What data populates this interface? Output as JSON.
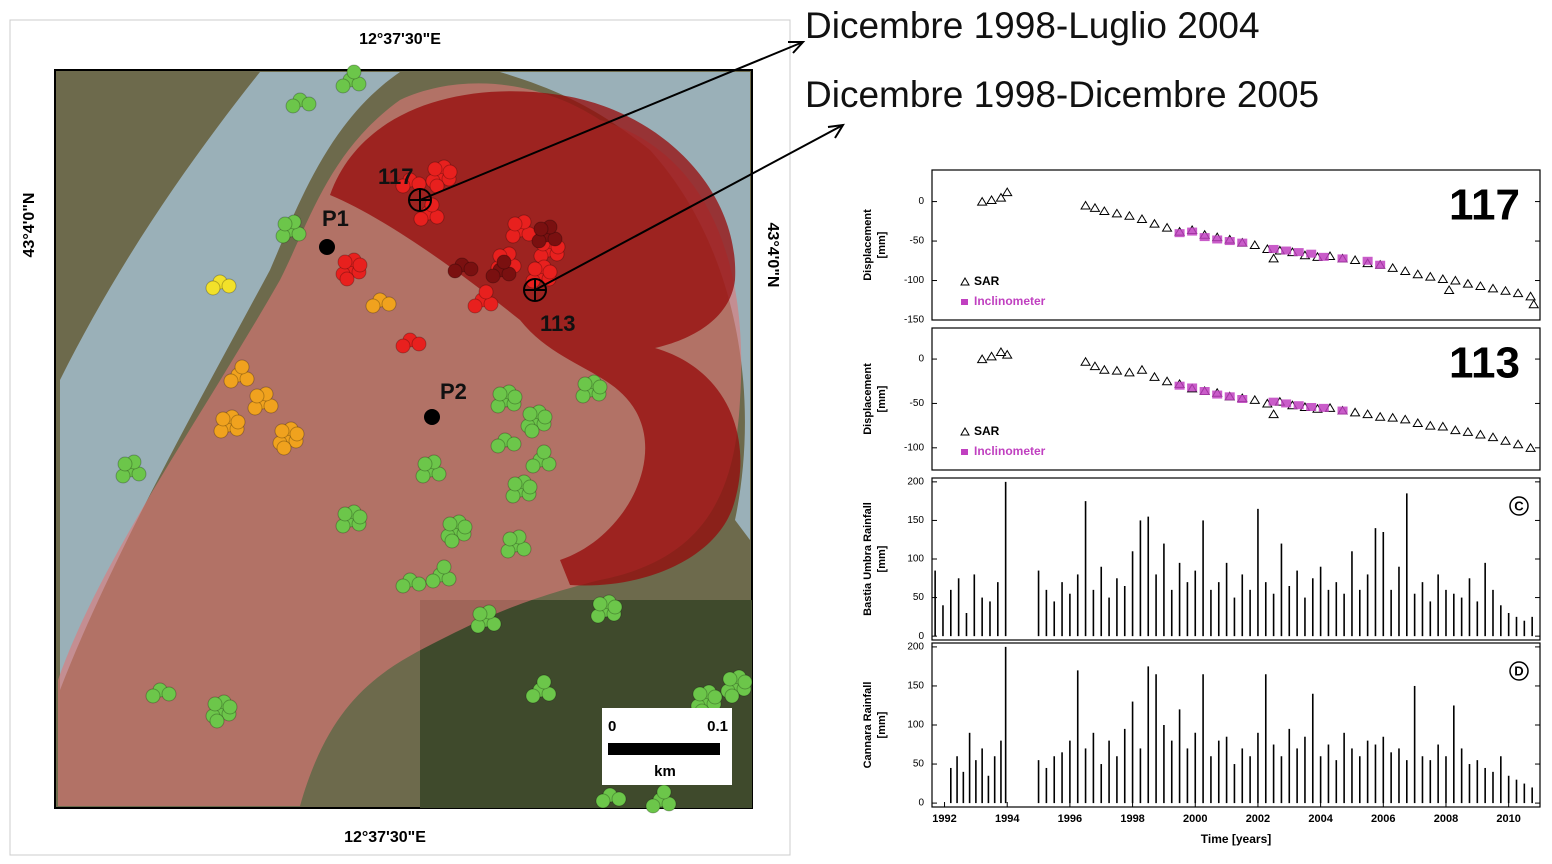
{
  "map": {
    "top_label": "12°37'30\"E",
    "bottom_label": "12°37'30\"E",
    "left_label": "43°4'0\"N",
    "right_label": "43°4'0\"N",
    "points": [
      {
        "label": "117"
      },
      {
        "label": "113"
      },
      {
        "label": "P1"
      },
      {
        "label": "P2"
      }
    ],
    "scale": {
      "start": "0",
      "end": "0.1",
      "unit": "km"
    }
  },
  "annotations": [
    "Dicembre 1998-Luglio 2004",
    "Dicembre 1998-Dicembre 2005"
  ],
  "chart_data": [
    {
      "type": "scatter",
      "panel_label": "117",
      "ylabel": [
        "Displacement",
        "[mm]"
      ],
      "xlim": [
        1991.6,
        2011
      ],
      "ylim": [
        -150,
        40
      ],
      "yticks": [
        -150,
        -100,
        -50,
        0
      ],
      "series": [
        {
          "name": "SAR",
          "color": "#000000",
          "x": [
            1993.2,
            1993.5,
            1993.8,
            1994.0,
            1996.5,
            1996.8,
            1997.1,
            1997.5,
            1997.9,
            1998.3,
            1998.7,
            1999.1,
            1999.5,
            1999.9,
            2000.3,
            2000.7,
            2001.1,
            2001.5,
            2001.9,
            2002.3,
            2002.5,
            2002.7,
            2003.1,
            2003.5,
            2003.9,
            2004.3,
            2004.7,
            2005.1,
            2005.5,
            2005.9,
            2006.3,
            2006.7,
            2007.1,
            2007.5,
            2007.9,
            2008.1,
            2008.3,
            2008.7,
            2009.1,
            2009.5,
            2009.9,
            2010.3,
            2010.7,
            2010.8
          ],
          "values": [
            0,
            2,
            5,
            12,
            -5,
            -8,
            -12,
            -15,
            -18,
            -22,
            -28,
            -33,
            -38,
            -36,
            -42,
            -45,
            -48,
            -52,
            -55,
            -60,
            -72,
            -62,
            -64,
            -68,
            -70,
            -69,
            -72,
            -74,
            -78,
            -80,
            -84,
            -88,
            -92,
            -95,
            -98,
            -112,
            -100,
            -104,
            -107,
            -110,
            -113,
            -116,
            -120,
            -130
          ]
        },
        {
          "name": "Inclinometer",
          "color": "#c040c0",
          "x": [
            1999.5,
            1999.9,
            2000.3,
            2000.7,
            2001.1,
            2001.5,
            2002.5,
            2002.9,
            2003.3,
            2003.7,
            2004.1,
            2004.7,
            2005.5,
            2005.9
          ],
          "values": [
            -40,
            -38,
            -45,
            -48,
            -50,
            -52,
            -60,
            -62,
            -64,
            -66,
            -70,
            -72,
            -75,
            -80
          ]
        }
      ]
    },
    {
      "type": "scatter",
      "panel_label": "113",
      "ylabel": [
        "Displacement",
        "[mm]"
      ],
      "xlim": [
        1991.6,
        2011
      ],
      "ylim": [
        -125,
        35
      ],
      "yticks": [
        -100,
        -50,
        0
      ],
      "series": [
        {
          "name": "SAR",
          "color": "#000000",
          "x": [
            1993.2,
            1993.5,
            1993.8,
            1994.0,
            1996.5,
            1996.8,
            1997.1,
            1997.5,
            1997.9,
            1998.3,
            1998.7,
            1999.1,
            1999.5,
            1999.9,
            2000.3,
            2000.7,
            2001.1,
            2001.5,
            2001.9,
            2002.3,
            2002.5,
            2002.7,
            2003.1,
            2003.5,
            2003.9,
            2004.3,
            2004.7,
            2005.1,
            2005.5,
            2005.9,
            2006.3,
            2006.7,
            2007.1,
            2007.5,
            2007.9,
            2008.3,
            2008.7,
            2009.1,
            2009.5,
            2009.9,
            2010.3,
            2010.7
          ],
          "values": [
            0,
            3,
            8,
            5,
            -3,
            -8,
            -12,
            -13,
            -15,
            -12,
            -20,
            -25,
            -28,
            -33,
            -36,
            -38,
            -42,
            -44,
            -46,
            -50,
            -62,
            -48,
            -52,
            -54,
            -56,
            -55,
            -58,
            -60,
            -62,
            -65,
            -66,
            -68,
            -72,
            -75,
            -76,
            -80,
            -82,
            -85,
            -88,
            -92,
            -96,
            -100
          ]
        },
        {
          "name": "Inclinometer",
          "color": "#c040c0",
          "x": [
            1999.5,
            1999.9,
            2000.3,
            2000.7,
            2001.1,
            2001.5,
            2002.5,
            2002.9,
            2003.3,
            2003.7,
            2004.1,
            2004.7
          ],
          "values": [
            -30,
            -32,
            -36,
            -40,
            -42,
            -45,
            -48,
            -50,
            -52,
            -54,
            -55,
            -58
          ]
        }
      ]
    },
    {
      "type": "bar",
      "panel_label": "C",
      "ylabel": [
        "Bastia Umbra Rainfall",
        "[mm]"
      ],
      "xlim": [
        1991.6,
        2011
      ],
      "ylim": [
        -5,
        205
      ],
      "yticks": [
        0,
        50,
        100,
        150,
        200
      ],
      "color": "#000000",
      "x": [
        1991.7,
        1991.95,
        1992.2,
        1992.45,
        1992.7,
        1992.95,
        1993.2,
        1993.45,
        1993.7,
        1993.95,
        1995.0,
        1995.25,
        1995.5,
        1995.75,
        1996.0,
        1996.25,
        1996.5,
        1996.75,
        1997.0,
        1997.25,
        1997.5,
        1997.75,
        1998.0,
        1998.25,
        1998.5,
        1998.75,
        1999.0,
        1999.25,
        1999.5,
        1999.75,
        2000.0,
        2000.25,
        2000.5,
        2000.75,
        2001.0,
        2001.25,
        2001.5,
        2001.75,
        2002.0,
        2002.25,
        2002.5,
        2002.75,
        2003.0,
        2003.25,
        2003.5,
        2003.75,
        2004.0,
        2004.25,
        2004.5,
        2004.75,
        2005.0,
        2005.25,
        2005.5,
        2005.75,
        2006.0,
        2006.25,
        2006.5,
        2006.75,
        2007.0,
        2007.25,
        2007.5,
        2007.75,
        2008.0,
        2008.25,
        2008.5,
        2008.75,
        2009.0,
        2009.25,
        2009.5,
        2009.75,
        2010.0,
        2010.25,
        2010.5,
        2010.75
      ],
      "values": [
        85,
        40,
        60,
        75,
        30,
        80,
        50,
        45,
        70,
        200,
        85,
        60,
        45,
        70,
        55,
        80,
        175,
        60,
        90,
        50,
        75,
        65,
        110,
        150,
        155,
        80,
        120,
        60,
        95,
        70,
        85,
        150,
        60,
        70,
        95,
        50,
        80,
        60,
        165,
        70,
        55,
        120,
        65,
        85,
        50,
        75,
        90,
        60,
        70,
        55,
        110,
        60,
        80,
        140,
        135,
        60,
        90,
        185,
        55,
        70,
        45,
        80,
        60,
        55,
        50,
        75,
        45,
        95,
        60,
        40,
        30,
        25,
        20,
        25
      ]
    },
    {
      "type": "bar",
      "panel_label": "D",
      "ylabel": [
        "Cannara Rainfall",
        "[mm]"
      ],
      "xlabel": "Time [years]",
      "xlim": [
        1991.6,
        2011
      ],
      "ylim": [
        -5,
        205
      ],
      "yticks": [
        0,
        50,
        100,
        150,
        200
      ],
      "xticks": [
        1992,
        1994,
        1996,
        1998,
        2000,
        2002,
        2004,
        2006,
        2008,
        2010
      ],
      "color": "#000000",
      "x": [
        1992.2,
        1992.4,
        1992.6,
        1992.8,
        1993.0,
        1993.2,
        1993.4,
        1993.6,
        1993.8,
        1993.95,
        1995.0,
        1995.25,
        1995.5,
        1995.75,
        1996.0,
        1996.25,
        1996.5,
        1996.75,
        1997.0,
        1997.25,
        1997.5,
        1997.75,
        1998.0,
        1998.25,
        1998.5,
        1998.75,
        1999.0,
        1999.25,
        1999.5,
        1999.75,
        2000.0,
        2000.25,
        2000.5,
        2000.75,
        2001.0,
        2001.25,
        2001.5,
        2001.75,
        2002.0,
        2002.25,
        2002.5,
        2002.75,
        2003.0,
        2003.25,
        2003.5,
        2003.75,
        2004.0,
        2004.25,
        2004.5,
        2004.75,
        2005.0,
        2005.25,
        2005.5,
        2005.75,
        2006.0,
        2006.25,
        2006.5,
        2006.75,
        2007.0,
        2007.25,
        2007.5,
        2007.75,
        2008.0,
        2008.25,
        2008.5,
        2008.75,
        2009.0,
        2009.25,
        2009.5,
        2009.75,
        2010.0,
        2010.25,
        2010.5,
        2010.75
      ],
      "values": [
        45,
        60,
        40,
        90,
        55,
        70,
        35,
        60,
        80,
        200,
        55,
        45,
        60,
        65,
        80,
        170,
        70,
        90,
        50,
        80,
        60,
        95,
        130,
        70,
        175,
        165,
        100,
        80,
        120,
        70,
        90,
        165,
        60,
        80,
        85,
        50,
        70,
        60,
        90,
        165,
        75,
        60,
        95,
        70,
        85,
        140,
        60,
        75,
        55,
        90,
        70,
        60,
        80,
        75,
        85,
        65,
        70,
        55,
        150,
        60,
        55,
        75,
        60,
        125,
        70,
        50,
        55,
        45,
        40,
        60,
        35,
        30,
        25,
        20
      ]
    }
  ]
}
